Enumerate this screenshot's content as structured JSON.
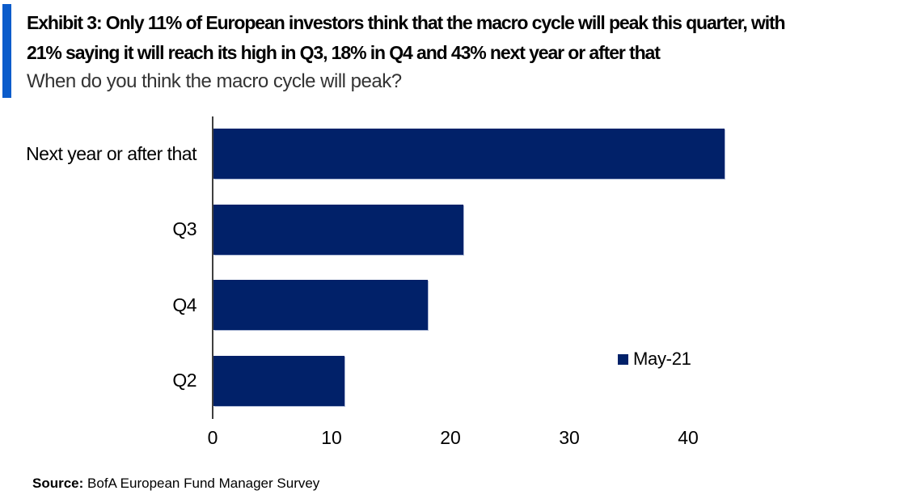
{
  "header": {
    "accent_color": "#0B5CCB",
    "title_line1": "Exhibit 3: Only 11% of European investors think that the macro cycle will peak this quarter, with",
    "title_line2": "21% saying it will reach its high in Q3, 18% in Q4 and 43% next year or after that",
    "subtitle": "When do you think the macro cycle will peak?"
  },
  "chart_data": {
    "type": "bar",
    "orientation": "horizontal",
    "title": "When do you think the macro cycle will peak?",
    "categories": [
      "Next year or after that",
      "Q3",
      "Q4",
      "Q2"
    ],
    "series": [
      {
        "name": "May-21",
        "values": [
          43,
          21,
          18,
          11
        ]
      }
    ],
    "unit": "%",
    "xlim": [
      0,
      45
    ],
    "x_ticks": [
      "0",
      "10",
      "20",
      "30",
      "40"
    ],
    "grid": false,
    "bar_color": "#012169",
    "axis_color": "#3F3F3F",
    "legend": {
      "label": "May-21",
      "swatch_color": "#012169",
      "position": "middle-right"
    }
  },
  "footer": {
    "source_label": "Source:",
    "source_text": " BofA European Fund Manager Survey"
  }
}
